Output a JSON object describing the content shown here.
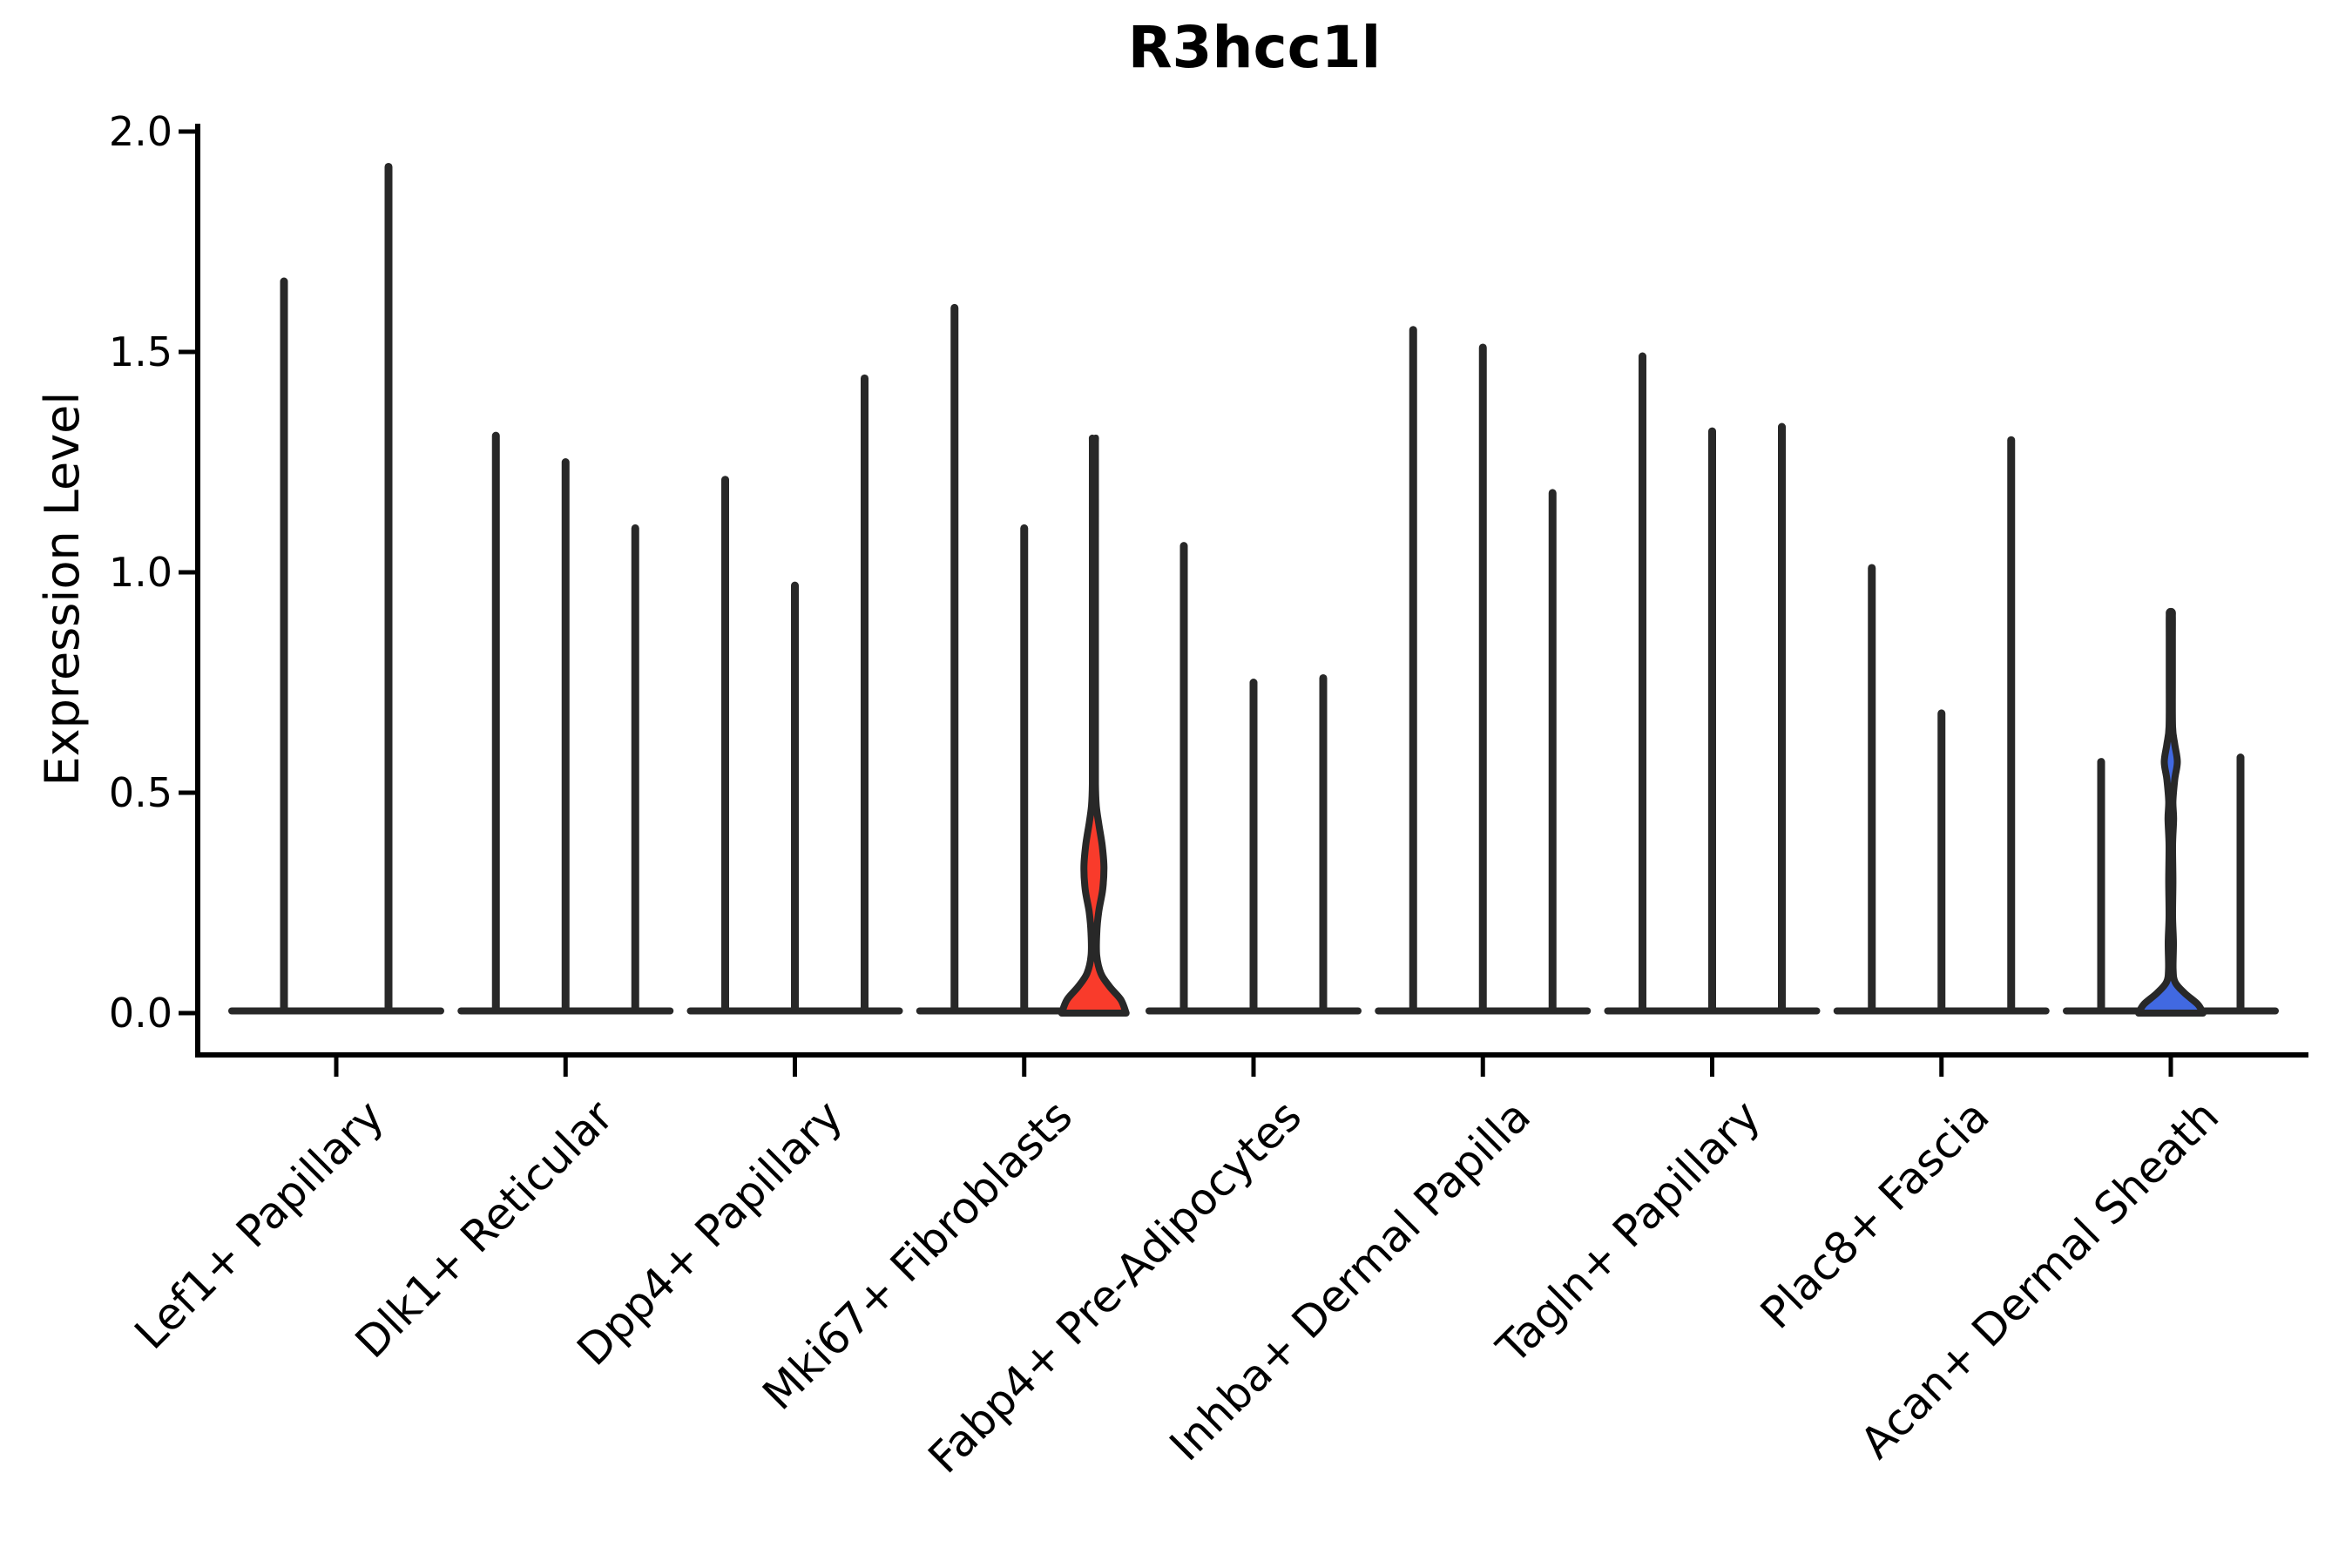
{
  "chart_data": {
    "type": "violin",
    "title": "R3hcc1l",
    "ylabel": "Expression Level",
    "xlabel": "",
    "ylim": [
      0.0,
      2.0
    ],
    "grid": false,
    "legend": "none",
    "yticks": [
      {
        "value": 0.0,
        "label": "0.0"
      },
      {
        "value": 0.5,
        "label": "0.5"
      },
      {
        "value": 1.0,
        "label": "1.0"
      },
      {
        "value": 1.5,
        "label": "1.5"
      },
      {
        "value": 2.0,
        "label": "2.0"
      }
    ],
    "categories": [
      "Lef1+ Papillary",
      "Dlk1+ Reticular",
      "Dpp4+ Papillary",
      "Mki67+ Fibroblasts",
      "Fabp4+ Pre-Adipocytes",
      "Inhba+ Dermal Papilla",
      "Tagln+ Papillary",
      "Plac8+ Fascia",
      "Acan+ Dermal Sheath"
    ],
    "groups": [
      {
        "label": "Lef1+ Papillary",
        "violins": [
          {
            "offset": -60,
            "half_width": 60,
            "max": 1.66
          },
          {
            "offset": 60,
            "half_width": 60,
            "max": 1.92
          }
        ]
      },
      {
        "label": "Dlk1+ Reticular",
        "violins": [
          {
            "offset": -80,
            "half_width": 40,
            "max": 1.31
          },
          {
            "offset": 0,
            "half_width": 40,
            "max": 1.25
          },
          {
            "offset": 80,
            "half_width": 40,
            "max": 1.1
          }
        ]
      },
      {
        "label": "Dpp4+ Papillary",
        "violins": [
          {
            "offset": -80,
            "half_width": 40,
            "max": 1.21
          },
          {
            "offset": 0,
            "half_width": 40,
            "max": 0.97
          },
          {
            "offset": 80,
            "half_width": 40,
            "max": 1.44
          }
        ]
      },
      {
        "label": "Mki67+ Fibroblasts",
        "violins": [
          {
            "offset": -80,
            "half_width": 40,
            "max": 1.6
          },
          {
            "offset": 0,
            "half_width": 40,
            "max": 1.1
          },
          {
            "offset": 80,
            "half_width": 40,
            "max": 1.3,
            "fill": "#F93B2B",
            "profile": [
              [
                0,
                37
              ],
              [
                0.03,
                31
              ],
              [
                0.06,
                18
              ],
              [
                0.09,
                8
              ],
              [
                0.13,
                3.2
              ],
              [
                0.18,
                3.2
              ],
              [
                0.23,
                5.5
              ],
              [
                0.28,
                10
              ],
              [
                0.33,
                11.5
              ],
              [
                0.38,
                9.5
              ],
              [
                0.43,
                5.5
              ],
              [
                0.47,
                2.8
              ],
              [
                0.52,
                1.8
              ],
              [
                0.65,
                1.8
              ],
              [
                0.85,
                1.8
              ],
              [
                1.05,
                1.8
              ],
              [
                1.28,
                1.8
              ],
              [
                1.3,
                1.5
              ]
            ]
          }
        ]
      },
      {
        "label": "Fabp4+ Pre-Adipocytes",
        "violins": [
          {
            "offset": -80,
            "half_width": 40,
            "max": 1.06
          },
          {
            "offset": 0,
            "half_width": 40,
            "max": 0.75
          },
          {
            "offset": 80,
            "half_width": 40,
            "max": 0.76
          }
        ]
      },
      {
        "label": "Inhba+ Dermal Papilla",
        "violins": [
          {
            "offset": -80,
            "half_width": 40,
            "max": 1.55
          },
          {
            "offset": 0,
            "half_width": 40,
            "max": 1.51
          },
          {
            "offset": 80,
            "half_width": 40,
            "max": 1.18
          }
        ]
      },
      {
        "label": "Tagln+ Papillary",
        "violins": [
          {
            "offset": -80,
            "half_width": 40,
            "max": 1.49
          },
          {
            "offset": 0,
            "half_width": 40,
            "max": 1.32
          },
          {
            "offset": 80,
            "half_width": 40,
            "max": 1.33
          }
        ]
      },
      {
        "label": "Plac8+ Fascia",
        "violins": [
          {
            "offset": -80,
            "half_width": 40,
            "max": 1.01
          },
          {
            "offset": 0,
            "half_width": 40,
            "max": 0.68
          },
          {
            "offset": 80,
            "half_width": 40,
            "max": 1.3
          }
        ]
      },
      {
        "label": "Acan+ Dermal Sheath",
        "violins": [
          {
            "offset": -80,
            "half_width": 40,
            "max": 0.57
          },
          {
            "offset": 0,
            "half_width": 40,
            "max": 0.91,
            "fill": "#4169E1",
            "profile": [
              [
                0,
                37
              ],
              [
                0.02,
                31
              ],
              [
                0.045,
                16
              ],
              [
                0.07,
                5
              ],
              [
                0.1,
                2.6
              ],
              [
                0.16,
                3.0
              ],
              [
                0.22,
                2.0
              ],
              [
                0.3,
                2.4
              ],
              [
                0.38,
                2.0
              ],
              [
                0.44,
                3.2
              ],
              [
                0.48,
                2.4
              ],
              [
                0.53,
                4.5
              ],
              [
                0.57,
                7.5
              ],
              [
                0.61,
                4.5
              ],
              [
                0.65,
                2.0
              ],
              [
                0.75,
                1.8
              ],
              [
                0.85,
                1.8
              ],
              [
                0.9,
                1.8
              ],
              [
                0.91,
                1.5
              ]
            ]
          },
          {
            "offset": 80,
            "half_width": 40,
            "max": 0.58
          }
        ]
      }
    ],
    "colors": {
      "background": "#ffffff",
      "axis": "#000000",
      "text": "#000000",
      "violin_outline": "#282828",
      "highlight_red": "#F93B2B",
      "highlight_blue": "#4169E1"
    }
  }
}
